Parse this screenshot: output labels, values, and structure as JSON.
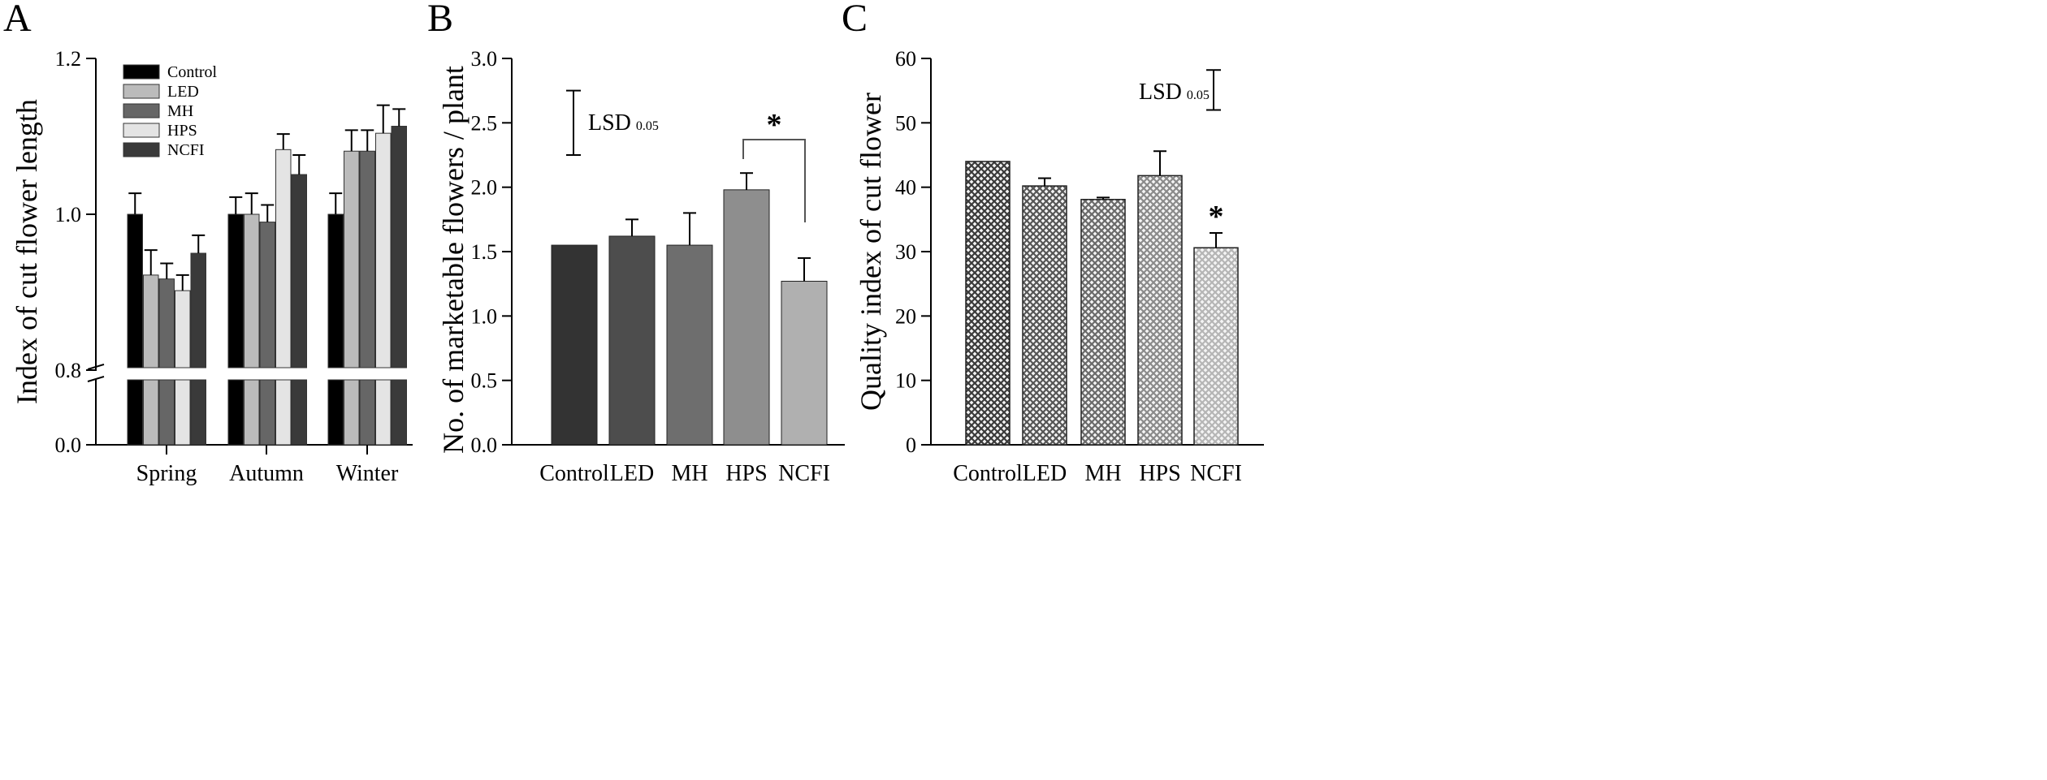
{
  "chart_data": [
    {
      "panel": "A",
      "type": "bar",
      "categories": [
        "Spring",
        "Autumn",
        "Winter"
      ],
      "ylabel": "Index of cut flower length",
      "yticks": [
        "0.0",
        "0.8",
        "1.0",
        "1.2"
      ],
      "axis_break": true,
      "ylim": [
        0.0,
        1.2
      ],
      "legend": "top-left",
      "series": [
        {
          "name": "Control",
          "color": "#000000",
          "values": [
            1.0,
            1.0,
            1.0
          ],
          "errors": [
            0.027,
            0.022,
            0.027
          ]
        },
        {
          "name": "LED",
          "color": "#bbbbbb",
          "values": [
            0.922,
            1.0,
            1.081
          ],
          "errors": [
            0.032,
            0.027,
            0.027
          ]
        },
        {
          "name": "MH",
          "color": "#666666",
          "values": [
            0.917,
            0.99,
            1.081
          ],
          "errors": [
            0.02,
            0.022,
            0.027
          ]
        },
        {
          "name": "HPS",
          "color": "#e4e4e4",
          "values": [
            0.902,
            1.083,
            1.104
          ],
          "errors": [
            0.02,
            0.02,
            0.036
          ]
        },
        {
          "name": "NCFI",
          "color": "#3a3a3a",
          "values": [
            0.95,
            1.051,
            1.113
          ],
          "errors": [
            0.023,
            0.025,
            0.022
          ]
        }
      ]
    },
    {
      "panel": "B",
      "type": "bar",
      "categories": [
        "Control",
        "LED",
        "MH",
        "HPS",
        "NCFI"
      ],
      "ylabel": "No. of marketable flowers / plant",
      "yticks": [
        "0.0",
        "0.5",
        "1.0",
        "1.5",
        "2.0",
        "2.5",
        "3.0"
      ],
      "ylim": [
        0.0,
        3.0
      ],
      "values": [
        1.55,
        1.62,
        1.55,
        1.98,
        1.27
      ],
      "errors": [
        0.0,
        0.13,
        0.25,
        0.13,
        0.18
      ],
      "colors": [
        "#333333",
        "#4d4d4d",
        "#6e6e6e",
        "#8e8e8e",
        "#b0b0b0"
      ],
      "lsd": {
        "label": "LSD",
        "sub": "0.05",
        "low": 2.25,
        "high": 2.75
      },
      "significance": {
        "label": "*",
        "from": "HPS",
        "to": "NCFI"
      }
    },
    {
      "panel": "C",
      "type": "bar",
      "categories": [
        "Control",
        "LED",
        "MH",
        "HPS",
        "NCFI"
      ],
      "ylabel": "Quality index of cut flower",
      "yticks": [
        "0",
        "10",
        "20",
        "30",
        "40",
        "50",
        "60"
      ],
      "ylim": [
        0,
        60
      ],
      "values": [
        44.0,
        40.2,
        38.1,
        41.8,
        30.6
      ],
      "errors": [
        0.0,
        1.2,
        0.3,
        3.8,
        2.3
      ],
      "patterns": [
        "#3a3a3a",
        "#555555",
        "#6a6a6a",
        "#8a8a8a",
        "#b5b5b5"
      ],
      "lsd": {
        "label": "LSD",
        "sub": "0.05",
        "low": 52.0,
        "high": 58.2
      },
      "significance": {
        "label": "*",
        "at": "NCFI"
      }
    }
  ],
  "panel_labels": [
    "A",
    "B",
    "C"
  ]
}
